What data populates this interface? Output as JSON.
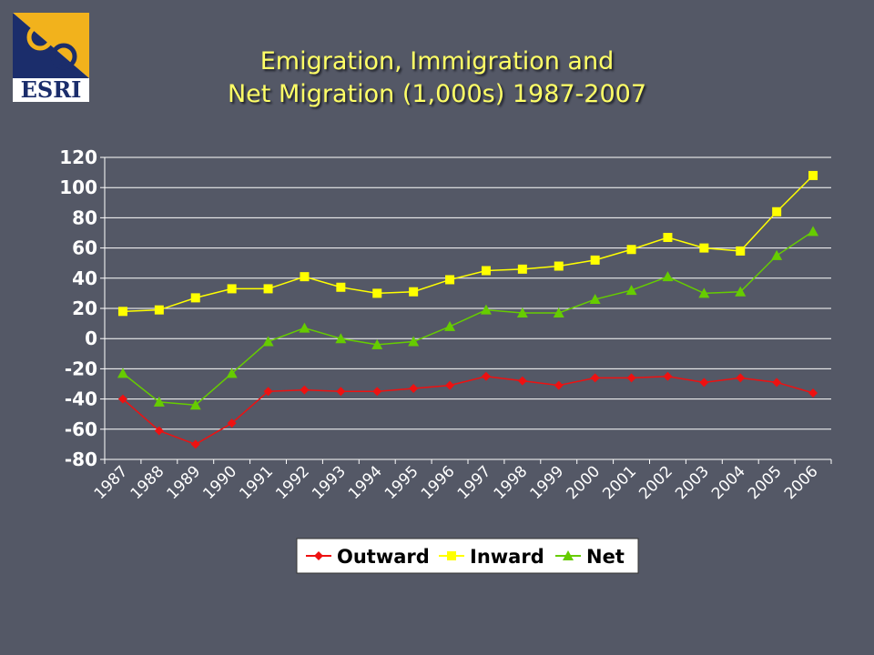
{
  "logo": {
    "text": "ESRI"
  },
  "title": {
    "line1": "Emigration, Immigration and",
    "line2": "Net Migration (1,000s) 1987-2007"
  },
  "chart_data": {
    "type": "line",
    "categories": [
      "1987",
      "1988",
      "1989",
      "1990",
      "1991",
      "1992",
      "1993",
      "1994",
      "1995",
      "1996",
      "1997",
      "1998",
      "1999",
      "2000",
      "2001",
      "2002",
      "2003",
      "2004",
      "2005",
      "2006"
    ],
    "ylim": [
      -80,
      120
    ],
    "yticks": [
      -80,
      -60,
      -40,
      -20,
      0,
      20,
      40,
      60,
      80,
      100,
      120
    ],
    "grid": true,
    "legend_position": "bottom",
    "series": [
      {
        "name": "Outward",
        "color": "#ee1111",
        "marker": "diamond",
        "values": [
          -40,
          -61,
          -70,
          -56,
          -35,
          -34,
          -35,
          -35,
          -33,
          -31,
          -25,
          -28,
          -31,
          -26,
          -26,
          -25,
          -29,
          -26,
          -29,
          -36
        ]
      },
      {
        "name": "Inward",
        "color": "#ffff00",
        "marker": "square",
        "values": [
          18,
          19,
          27,
          33,
          33,
          41,
          34,
          30,
          31,
          39,
          45,
          46,
          48,
          52,
          59,
          67,
          60,
          58,
          84,
          108
        ]
      },
      {
        "name": "Net",
        "color": "#66cc00",
        "marker": "triangle",
        "values": [
          -23,
          -42,
          -44,
          -23,
          -2,
          7,
          0,
          -4,
          -2,
          8,
          19,
          17,
          17,
          26,
          32,
          41,
          30,
          31,
          55,
          71
        ]
      }
    ]
  }
}
